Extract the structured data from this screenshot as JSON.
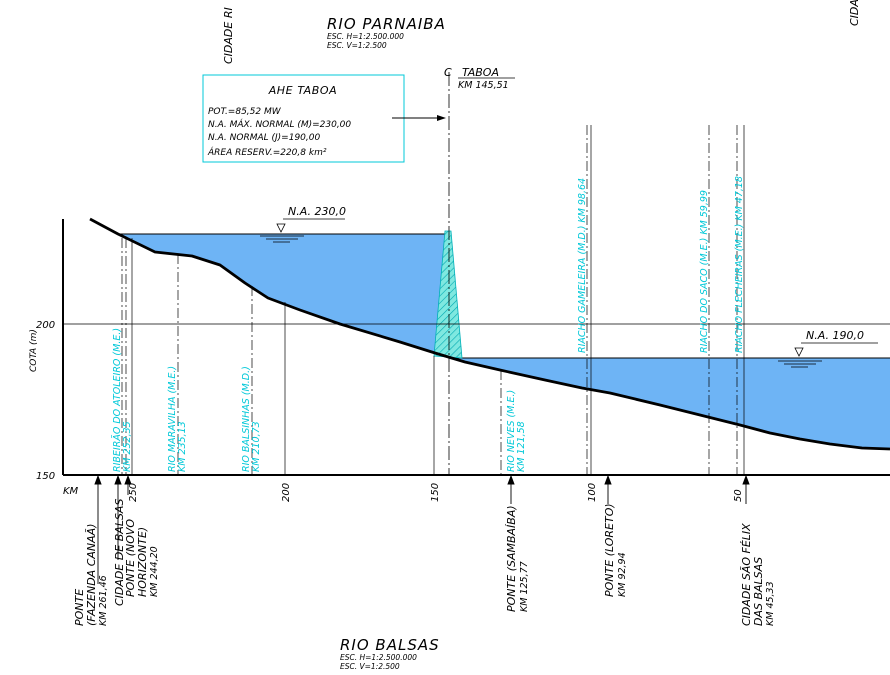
{
  "top_title": {
    "river": "RIO PARNAIBA",
    "scale_h": "ESC. H=1:2.500.000",
    "scale_v": "ESC. V=1:2.500"
  },
  "bottom_title": {
    "river": "RIO BALSAS",
    "scale_h": "ESC. H=1:2.500.000",
    "scale_v": "ESC. V=1:2.500"
  },
  "clipped_labels": {
    "left": "CIDADE RI",
    "right": "CIDA"
  },
  "dam_axis": {
    "symbol": "C",
    "name": "TABOA",
    "km": "KM 145,51"
  },
  "info_box": {
    "title": "AHE TABOA",
    "lines": [
      "POT.=85,52 MW",
      "N.A. MÁX. NORMAL (M)=230,00",
      "N.A. NORMAL (J)=190,00",
      "ÁREA RESERV.=220,8 km²"
    ]
  },
  "water_levels": {
    "upstream": "N.A. 230,0",
    "downstream": "N.A. 190,0"
  },
  "axis": {
    "y_label": "COTA (m)",
    "y_ticks": [
      "200",
      "150"
    ],
    "x_unit": "KM",
    "x_ticks": [
      "250",
      "200",
      "150",
      "100",
      "50"
    ]
  },
  "tributaries": [
    {
      "text": "RIBEIRÃO DO ATOLEIRO (M.E.)",
      "km": "KM 252,35"
    },
    {
      "text": "RIO MARAVILHA (M.E.)",
      "km": "KM 235,13"
    },
    {
      "text": "RIO BALSINHAS (M.D.)",
      "km": "KM 210,73"
    },
    {
      "text": "RIO NEVES (M.E.)",
      "km": "KM 121,58"
    },
    {
      "text": "RIACHO GAMELEIRA (M.D.) KM 98,64",
      "km": ""
    },
    {
      "text": "RIACHO DO SACO (M.E.) KM 59,99",
      "km": ""
    },
    {
      "text": "RIACHO FLECHEIRAS (M.E.) KM 47,18",
      "km": ""
    }
  ],
  "places": [
    {
      "lines": [
        "PONTE",
        "(FAZENDA CANAÃ)",
        "KM 261,46"
      ]
    },
    {
      "lines": [
        "CIDADE DE BALSAS"
      ]
    },
    {
      "lines": [
        "PONTE (NOVO",
        "HORIZONTE)",
        "KM 244,20"
      ]
    },
    {
      "lines": [
        "PONTE (SAMBAÍBA)",
        "KM 125,77"
      ]
    },
    {
      "lines": [
        "PONTE (LORETO)",
        "KM 92,94"
      ]
    },
    {
      "lines": [
        "CIDADE SÃO FÉLIX",
        "DAS BALSAS",
        "KM 45,33"
      ]
    }
  ],
  "colors": {
    "water": "#6eb4f5",
    "annotation": "#00c8d8",
    "ink": "#000000"
  }
}
